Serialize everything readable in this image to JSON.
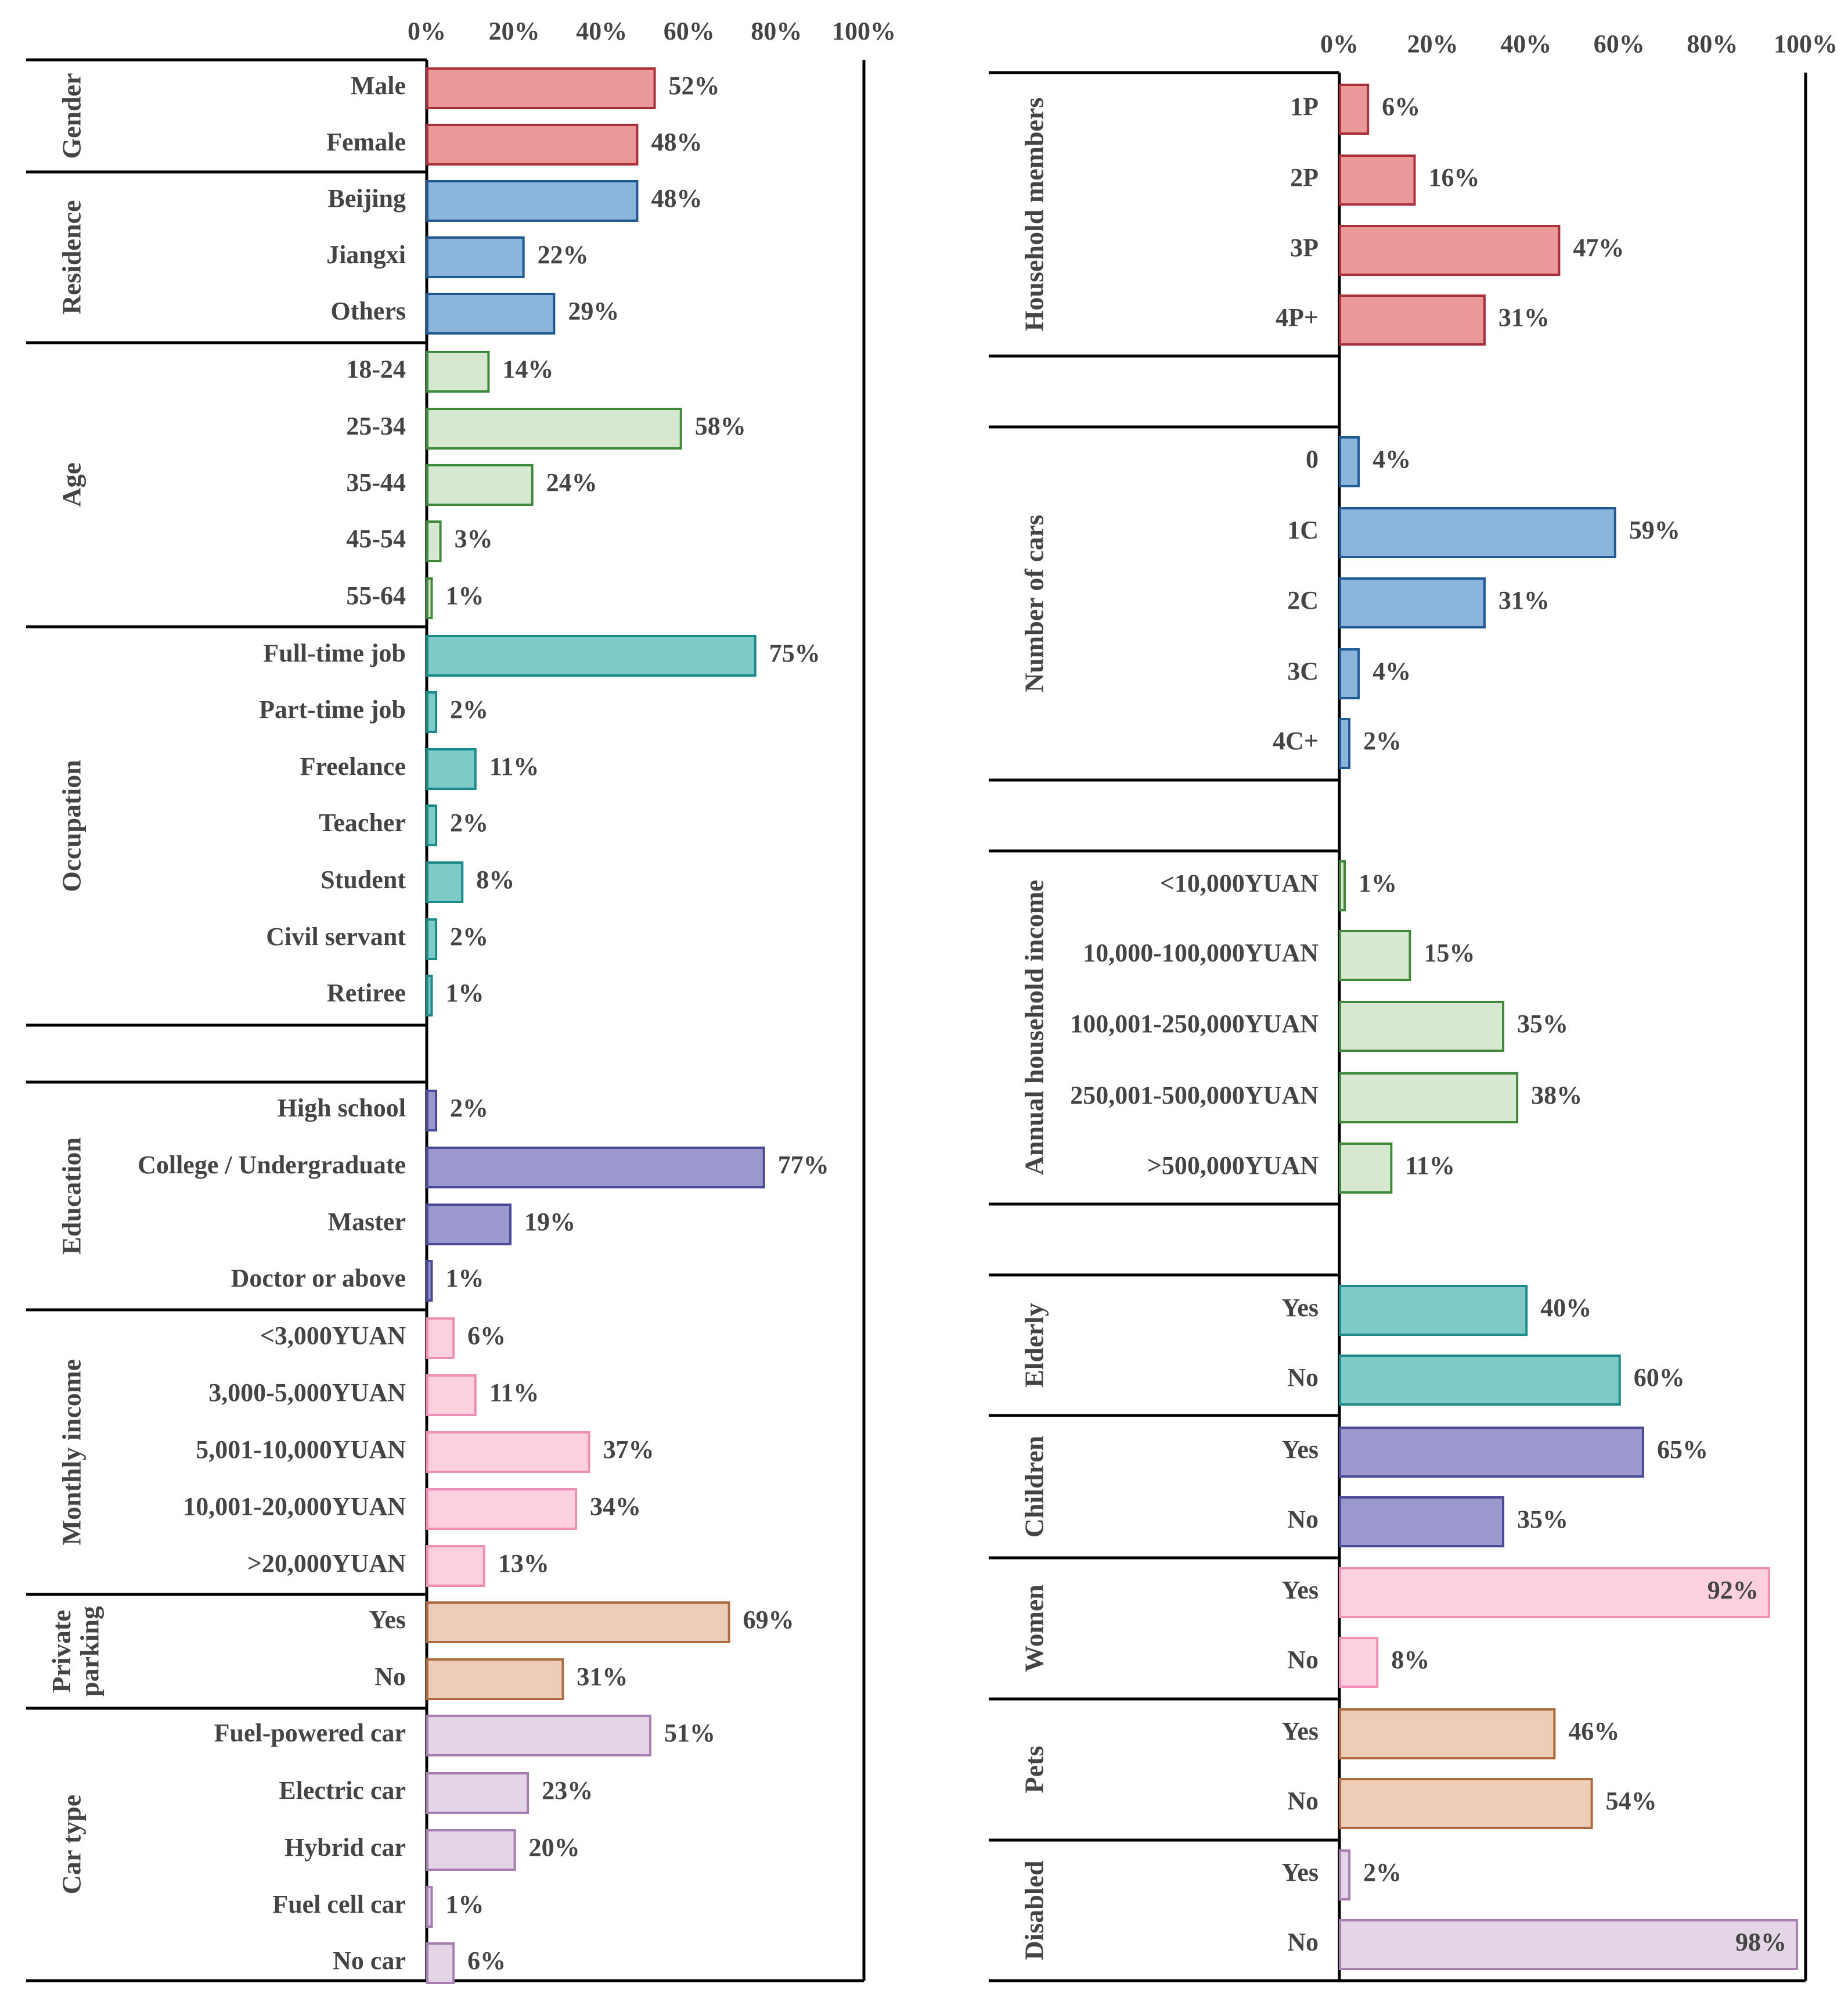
{
  "chart_data": [
    {
      "type": "bar",
      "orientation": "horizontal",
      "panel": "left",
      "xlim": [
        0,
        100
      ],
      "x_ticks": [
        "0%",
        "20%",
        "40%",
        "60%",
        "80%",
        "100%"
      ],
      "groups": [
        {
          "name": "Gender",
          "color_fill": "#eb9898",
          "color_stroke": "#a8303a",
          "categories": [
            "Male",
            "Female"
          ],
          "values": [
            52,
            48
          ],
          "labels": [
            "52%",
            "48%"
          ]
        },
        {
          "name": "Residence",
          "color_fill": "#8bb5da",
          "color_stroke": "#1f5a94",
          "categories": [
            "Beijing",
            "Jiangxi",
            "Others"
          ],
          "values": [
            48,
            22,
            29
          ],
          "labels": [
            "48%",
            "22%",
            "29%"
          ]
        },
        {
          "name": "Age",
          "color_fill": "#d6e8cf",
          "color_stroke": "#3f8a3a",
          "categories": [
            "18-24",
            "25-34",
            "35-44",
            "45-54",
            "55-64"
          ],
          "values": [
            14,
            58,
            24,
            3,
            1
          ],
          "labels": [
            "14%",
            "58%",
            "24%",
            "3%",
            "1%"
          ]
        },
        {
          "name": "Occupation",
          "color_fill": "#7ecac6",
          "color_stroke": "#1d8a8a",
          "categories": [
            "Full-time job",
            "Part-time job",
            "Freelance",
            "Teacher",
            "Student",
            "Civil servant",
            "Retiree"
          ],
          "values": [
            75,
            2,
            11,
            2,
            8,
            2,
            1
          ],
          "labels": [
            "75%",
            "2%",
            "11%",
            "2%",
            "8%",
            "2%",
            "1%"
          ]
        },
        {
          "name": "Education",
          "color_fill": "#9a98cc",
          "color_stroke": "#4b4a98",
          "categories": [
            "High school",
            "College / Undergraduate",
            "Master",
            "Doctor or above"
          ],
          "values": [
            2,
            77,
            19,
            1
          ],
          "labels": [
            "2%",
            "77%",
            "19%",
            "1%"
          ]
        },
        {
          "name": "Monthly income",
          "color_fill": "#fdd0e0",
          "color_stroke": "#ef8fb5",
          "categories": [
            "<3,000YUAN",
            "3,000-5,000YUAN",
            "5,001-10,000YUAN",
            "10,001-20,000YUAN",
            ">20,000YUAN"
          ],
          "values": [
            6,
            11,
            37,
            34,
            13
          ],
          "labels": [
            "6%",
            "11%",
            "37%",
            "34%",
            "13%"
          ]
        },
        {
          "name": "Private parking",
          "name_lines": [
            "Private",
            "parking"
          ],
          "color_fill": "#edcdb8",
          "color_stroke": "#b06a3f",
          "categories": [
            "Yes",
            "No"
          ],
          "values": [
            69,
            31
          ],
          "labels": [
            "69%",
            "31%"
          ]
        },
        {
          "name": "Car type",
          "color_fill": "#e3d4e6",
          "color_stroke": "#a67fb0",
          "categories": [
            "Fuel-powered car",
            "Electric car",
            "Hybrid car",
            "Fuel cell car",
            "No car"
          ],
          "values": [
            51,
            23,
            20,
            1,
            6
          ],
          "labels": [
            "51%",
            "23%",
            "20%",
            "1%",
            "6%"
          ]
        }
      ]
    },
    {
      "type": "bar",
      "orientation": "horizontal",
      "panel": "right",
      "xlim": [
        0,
        100
      ],
      "x_ticks": [
        "0%",
        "20%",
        "40%",
        "60%",
        "80%",
        "100%"
      ],
      "groups": [
        {
          "name": "Household members",
          "color_fill": "#eb9898",
          "color_stroke": "#a8303a",
          "categories": [
            "1P",
            "2P",
            "3P",
            "4P+"
          ],
          "values": [
            6,
            16,
            47,
            31
          ],
          "labels": [
            "6%",
            "16%",
            "47%",
            "31%"
          ]
        },
        {
          "name": "Number of cars",
          "color_fill": "#8bb5da",
          "color_stroke": "#1f5a94",
          "categories": [
            "0",
            "1C",
            "2C",
            "3C",
            "4C+"
          ],
          "values": [
            4,
            59,
            31,
            4,
            2
          ],
          "labels": [
            "4%",
            "59%",
            "31%",
            "4%",
            "2%"
          ]
        },
        {
          "name": "Annual household income",
          "color_fill": "#d6e8cf",
          "color_stroke": "#3f8a3a",
          "categories": [
            "<10,000YUAN",
            "10,000-100,000YUAN",
            "100,001-250,000YUAN",
            "250,001-500,000YUAN",
            ">500,000YUAN"
          ],
          "values": [
            1,
            15,
            35,
            38,
            11
          ],
          "labels": [
            "1%",
            "15%",
            "35%",
            "38%",
            "11%"
          ]
        },
        {
          "name": "Elderly",
          "color_fill": "#7ecac6",
          "color_stroke": "#1d8a8a",
          "categories": [
            "Yes",
            "No"
          ],
          "values": [
            40,
            60
          ],
          "labels": [
            "40%",
            "60%"
          ]
        },
        {
          "name": "Children",
          "color_fill": "#9a98cc",
          "color_stroke": "#4b4a98",
          "categories": [
            "Yes",
            "No"
          ],
          "values": [
            65,
            35
          ],
          "labels": [
            "65%",
            "35%"
          ]
        },
        {
          "name": "Women",
          "color_fill": "#fdd0e0",
          "color_stroke": "#ef8fb5",
          "categories": [
            "Yes",
            "No"
          ],
          "values": [
            92,
            8
          ],
          "labels": [
            "92%",
            "8%"
          ]
        },
        {
          "name": "Pets",
          "color_fill": "#edcdb8",
          "color_stroke": "#b06a3f",
          "categories": [
            "Yes",
            "No"
          ],
          "values": [
            46,
            54
          ],
          "labels": [
            "46%",
            "54%"
          ]
        },
        {
          "name": "Disabled",
          "color_fill": "#e3d4e6",
          "color_stroke": "#a67fb0",
          "categories": [
            "Yes",
            "No"
          ],
          "values": [
            2,
            98
          ],
          "labels": [
            "2%",
            "98%"
          ]
        }
      ]
    }
  ]
}
